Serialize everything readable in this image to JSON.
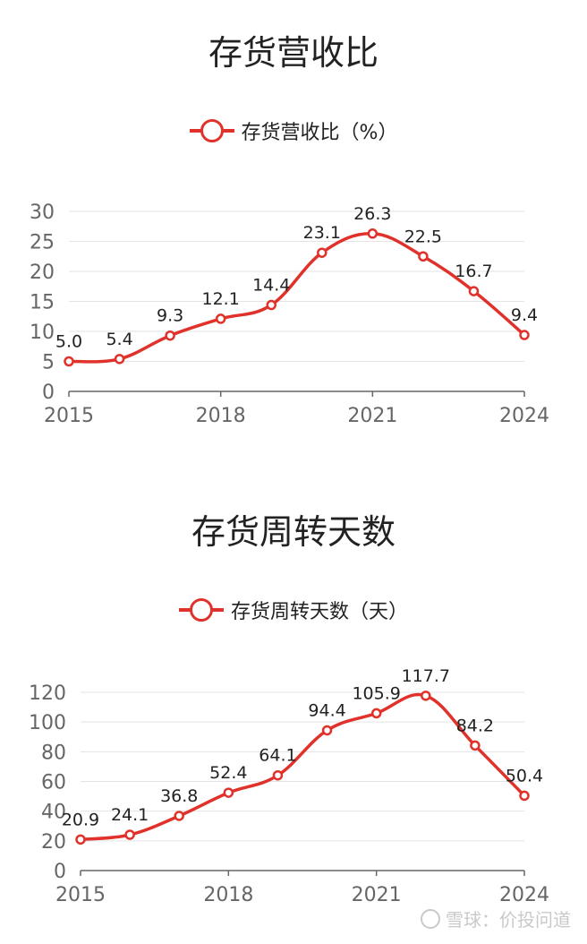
{
  "chart_data": [
    {
      "type": "line",
      "title": "存货营收比",
      "legend": "存货营收比（%）",
      "x": [
        2015,
        2016,
        2017,
        2018,
        2019,
        2020,
        2021,
        2022,
        2023,
        2024
      ],
      "xticks": [
        "2015",
        "2018",
        "2021",
        "2024"
      ],
      "values": [
        5.0,
        5.4,
        9.3,
        12.1,
        14.4,
        23.1,
        26.3,
        22.5,
        16.7,
        9.4
      ],
      "labels": [
        "5.0",
        "5.4",
        "9.3",
        "12.1",
        "14.4",
        "23.1",
        "26.3",
        "22.5",
        "16.7",
        "9.4"
      ],
      "yticks": [
        "0",
        "5",
        "10",
        "15",
        "20",
        "25",
        "30"
      ],
      "ylim": [
        0,
        30
      ],
      "color": "#e0322b",
      "grid": true,
      "legend_position": "top-center"
    },
    {
      "type": "line",
      "title": "存货周转天数",
      "legend": "存货周转天数（天）",
      "x": [
        2015,
        2016,
        2017,
        2018,
        2019,
        2020,
        2021,
        2022,
        2023,
        2024
      ],
      "xticks": [
        "2015",
        "2018",
        "2021",
        "2024"
      ],
      "values": [
        20.9,
        24.1,
        36.8,
        52.4,
        64.1,
        94.4,
        105.9,
        117.7,
        84.2,
        50.4
      ],
      "labels": [
        "20.9",
        "24.1",
        "36.8",
        "52.4",
        "64.1",
        "94.4",
        "105.9",
        "117.7",
        "84.2",
        "50.4"
      ],
      "yticks": [
        "0",
        "20",
        "40",
        "60",
        "80",
        "100",
        "120"
      ],
      "ylim": [
        0,
        120
      ],
      "color": "#e0322b",
      "grid": true,
      "legend_position": "top-center"
    }
  ],
  "watermark": "雪球：价投问道",
  "watermark_icon": "snowball-logo-icon"
}
